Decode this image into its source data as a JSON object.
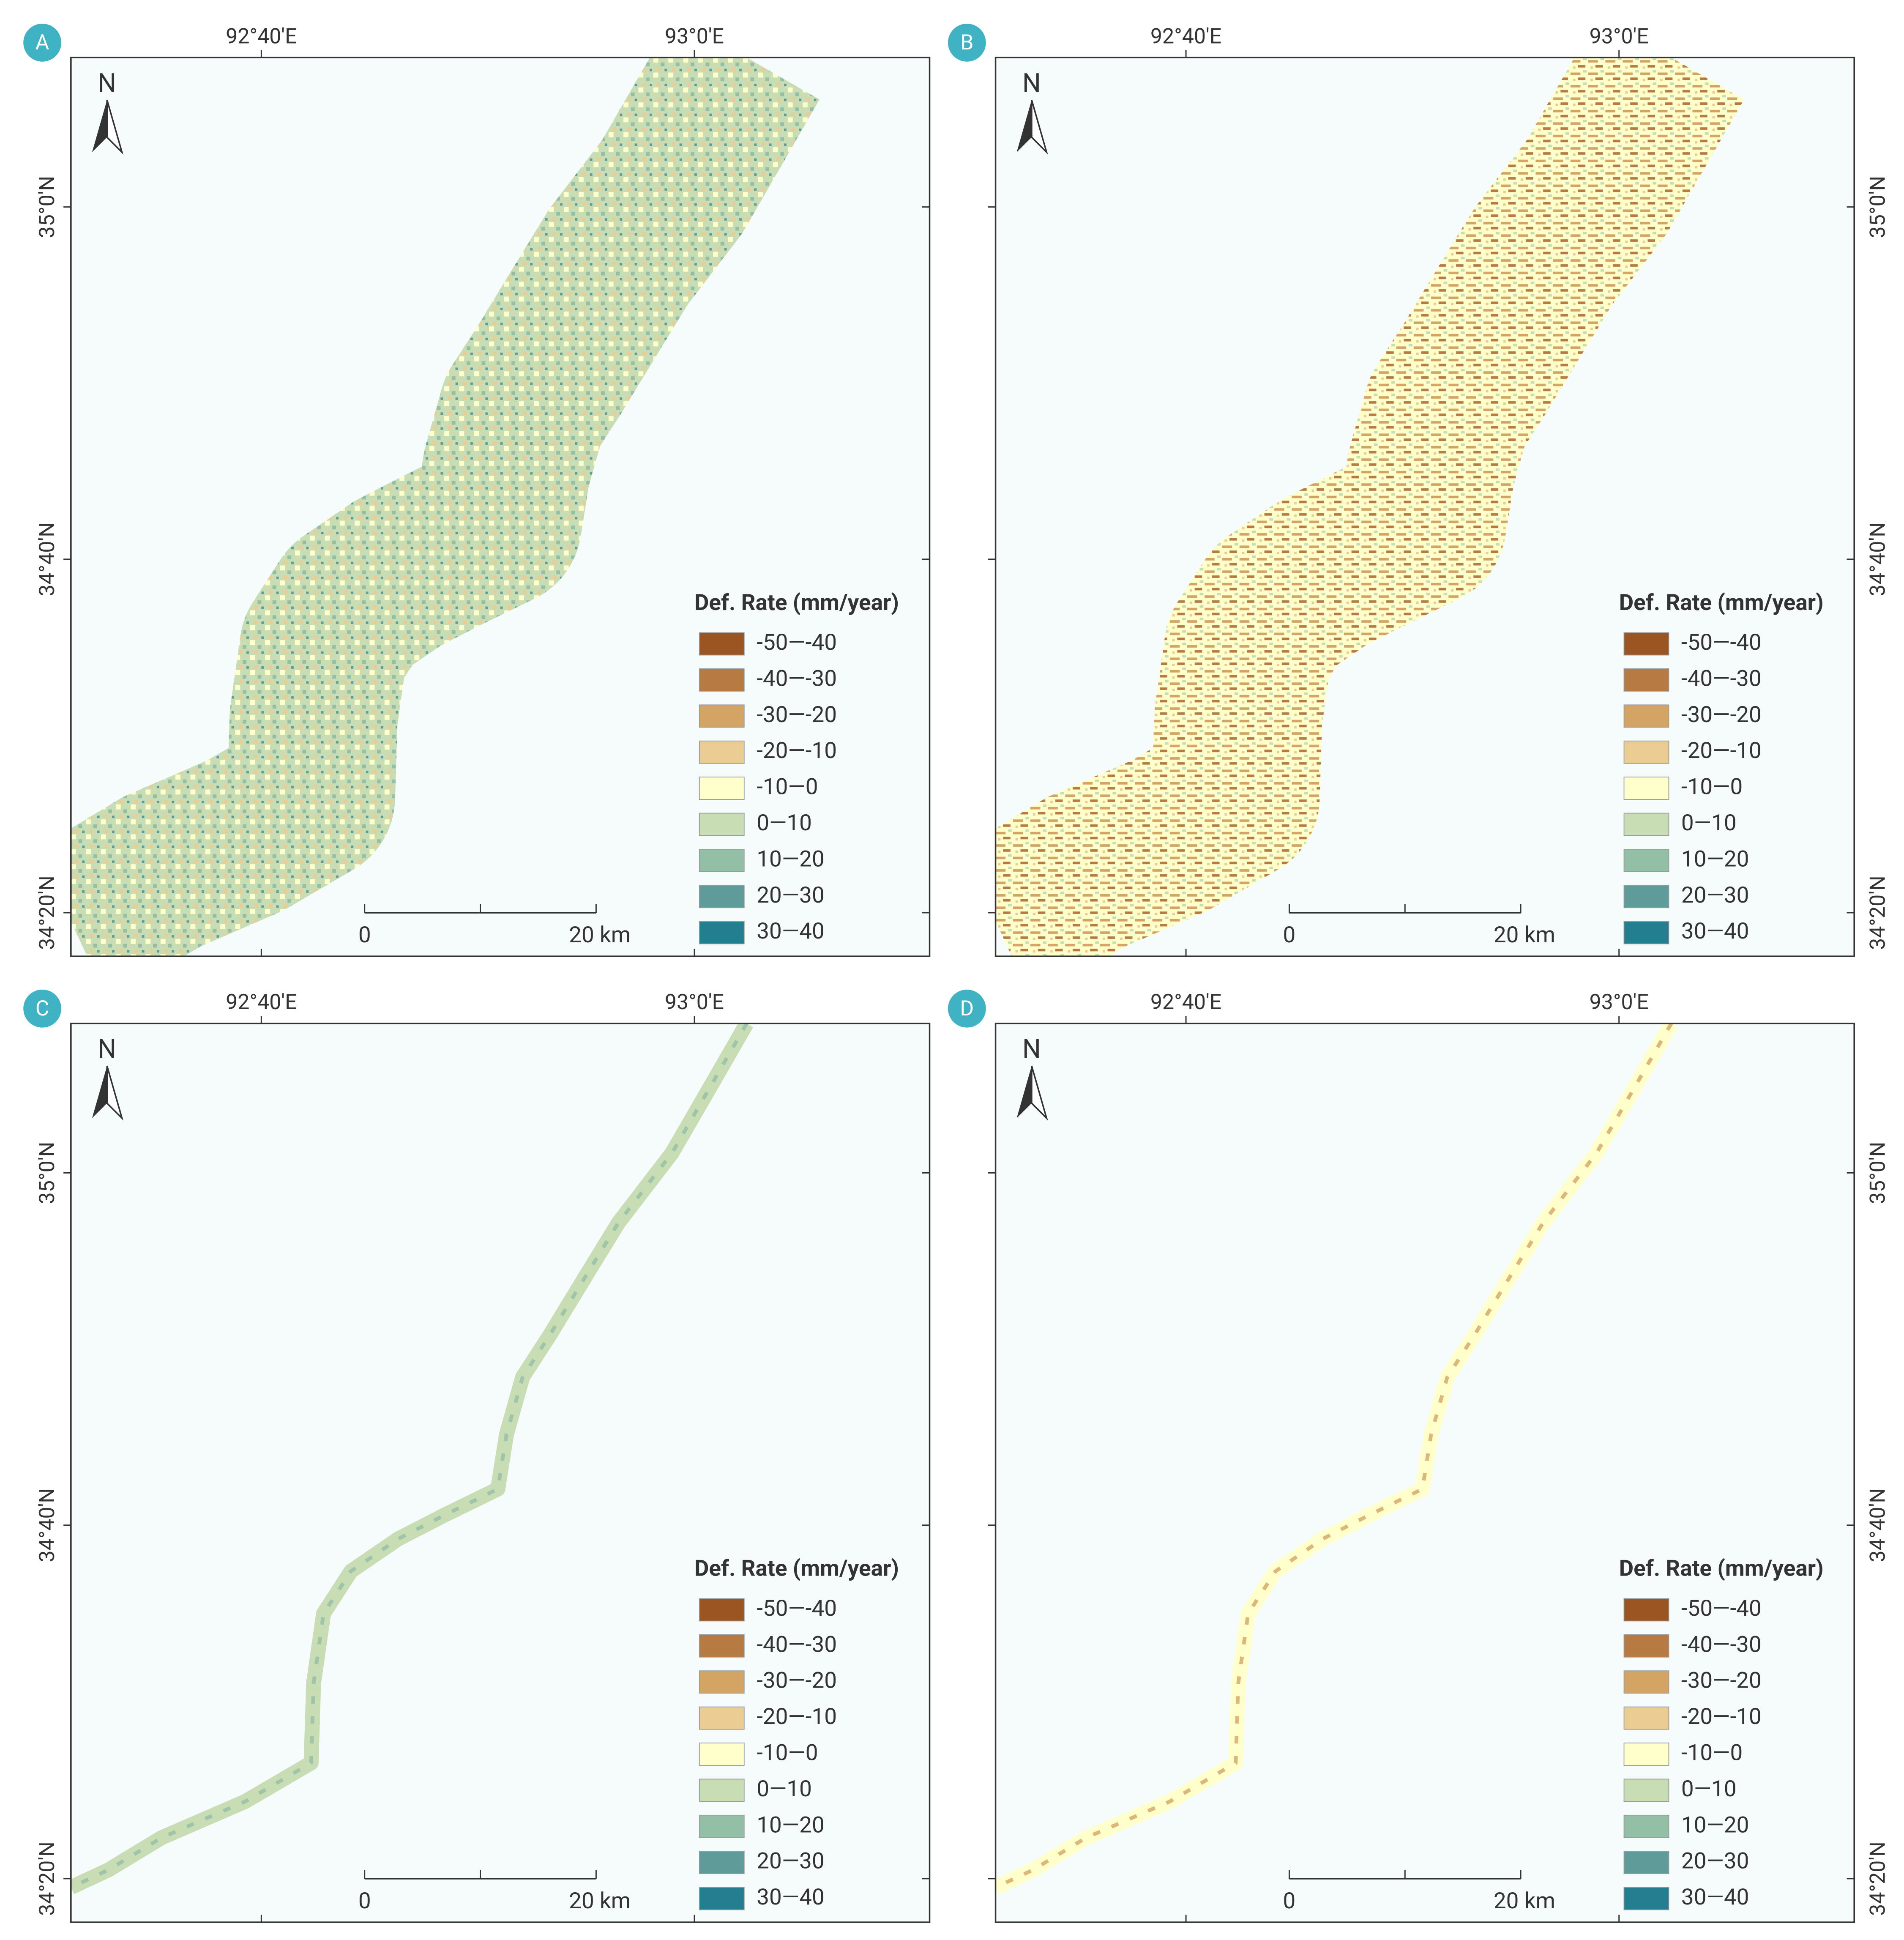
{
  "panels": [
    {
      "label": "A"
    },
    {
      "label": "B"
    },
    {
      "label": "C"
    },
    {
      "label": "D"
    }
  ],
  "graticule": {
    "longitudes": [
      "92°40′E",
      "93°0′E"
    ],
    "latitudes": [
      "35°0′N",
      "34°40′N",
      "34°20′N"
    ]
  },
  "north": "N",
  "legend": {
    "title": "Def. Rate (mm/year)",
    "items": [
      {
        "label": "-50—-40",
        "color": "#9b5523"
      },
      {
        "label": "-40—-30",
        "color": "#b87a43"
      },
      {
        "label": "-30—-20",
        "color": "#d4a464"
      },
      {
        "label": "-20—-10",
        "color": "#ebcd93"
      },
      {
        "label": "-10—0",
        "color": "#ffffcc"
      },
      {
        "label": "0—10",
        "color": "#c8ddb4"
      },
      {
        "label": "10—20",
        "color": "#93bfa6"
      },
      {
        "label": "20—30",
        "color": "#5f9c99"
      },
      {
        "label": "30—40",
        "color": "#237f8f"
      }
    ]
  },
  "scale_bar": {
    "start": "0",
    "end": "20 km"
  }
}
